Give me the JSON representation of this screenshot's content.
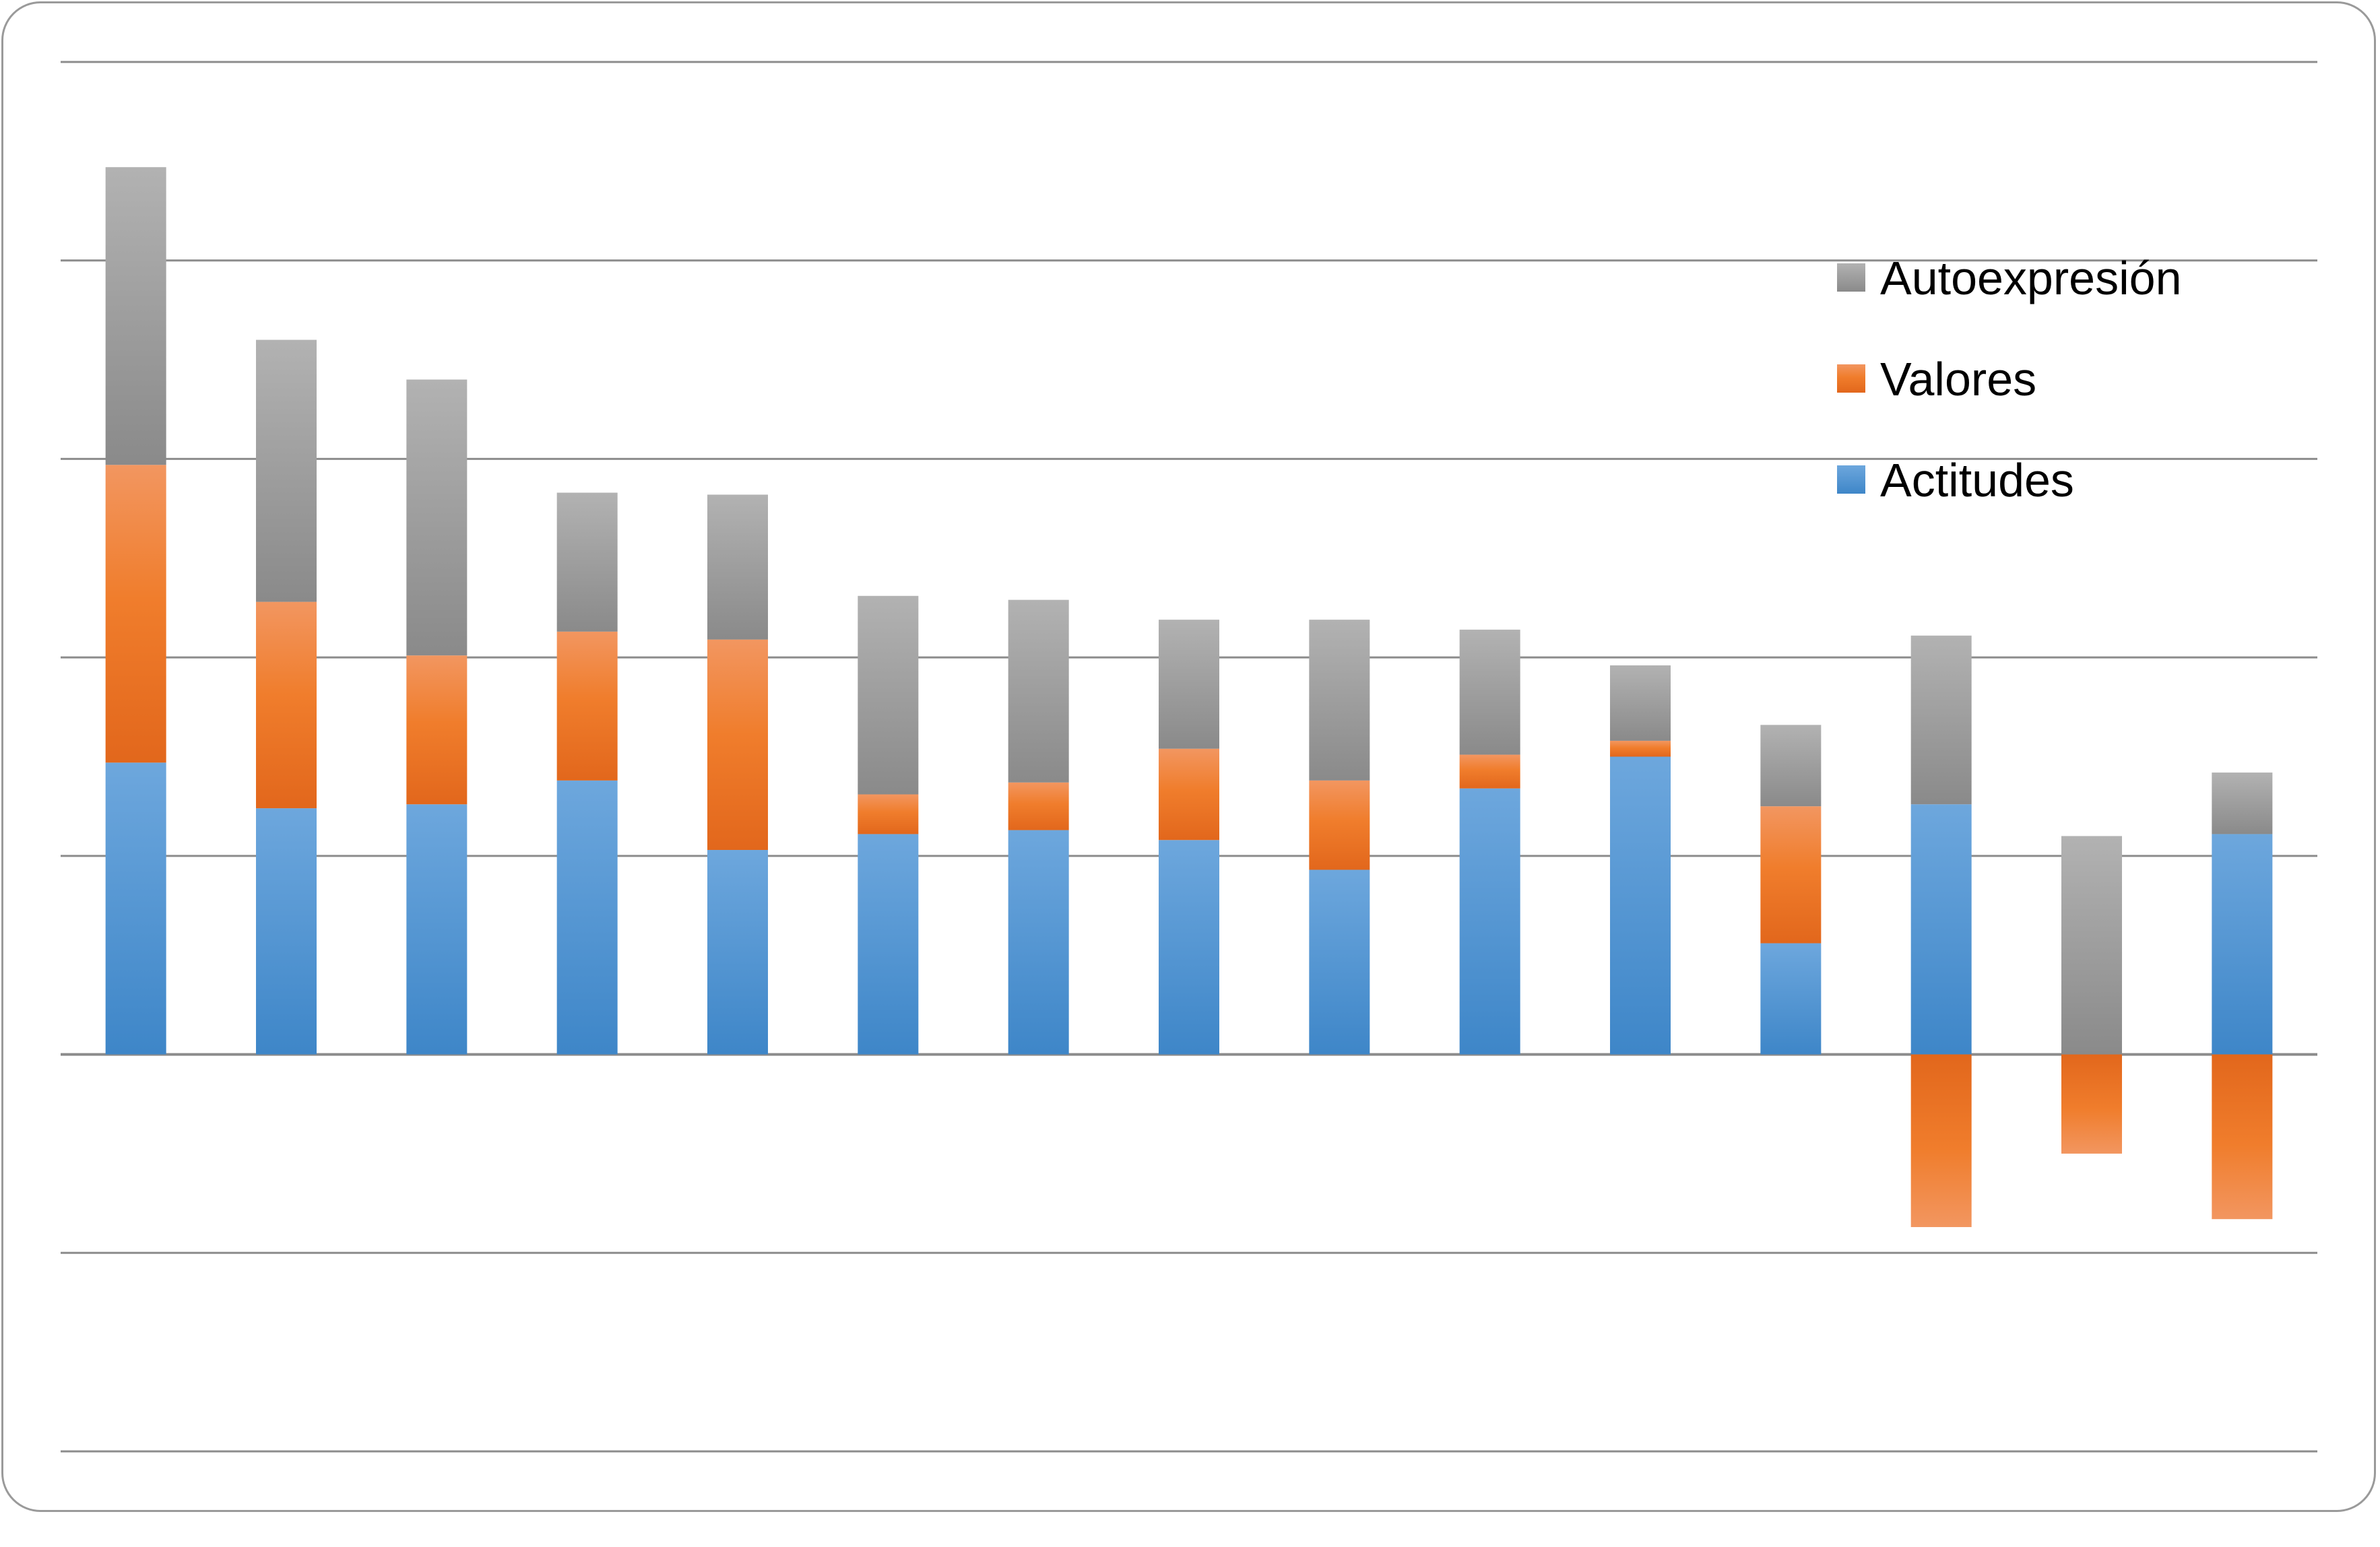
{
  "chart_data": {
    "type": "bar",
    "stacked": true,
    "categories": [
      "",
      "",
      "",
      "",
      "",
      "",
      "",
      "",
      "",
      "",
      "",
      "",
      "",
      "",
      ""
    ],
    "ylim": [
      -2,
      5
    ],
    "ytick_step": 1,
    "grid": true,
    "axis_labels_visible": false,
    "legend_position": "top-right",
    "series": [
      {
        "name": "Actitudes",
        "color": "#5b9bd5",
        "values": [
          1.47,
          1.24,
          1.26,
          1.38,
          1.03,
          1.11,
          1.13,
          1.08,
          0.93,
          1.34,
          1.5,
          0.56,
          1.26,
          0.0,
          1.11
        ]
      },
      {
        "name": "Valores",
        "color": "#ed7d31",
        "values": [
          1.5,
          1.04,
          0.75,
          0.75,
          1.06,
          0.2,
          0.24,
          0.46,
          0.45,
          0.17,
          0.08,
          0.69,
          -0.87,
          -0.5,
          -0.83
        ]
      },
      {
        "name": "Autoexpresión",
        "color": "#a5a5a5",
        "values": [
          1.5,
          1.32,
          1.39,
          0.7,
          0.73,
          1.0,
          0.92,
          0.65,
          0.81,
          0.63,
          0.38,
          0.41,
          0.85,
          1.1,
          0.31
        ]
      }
    ]
  }
}
